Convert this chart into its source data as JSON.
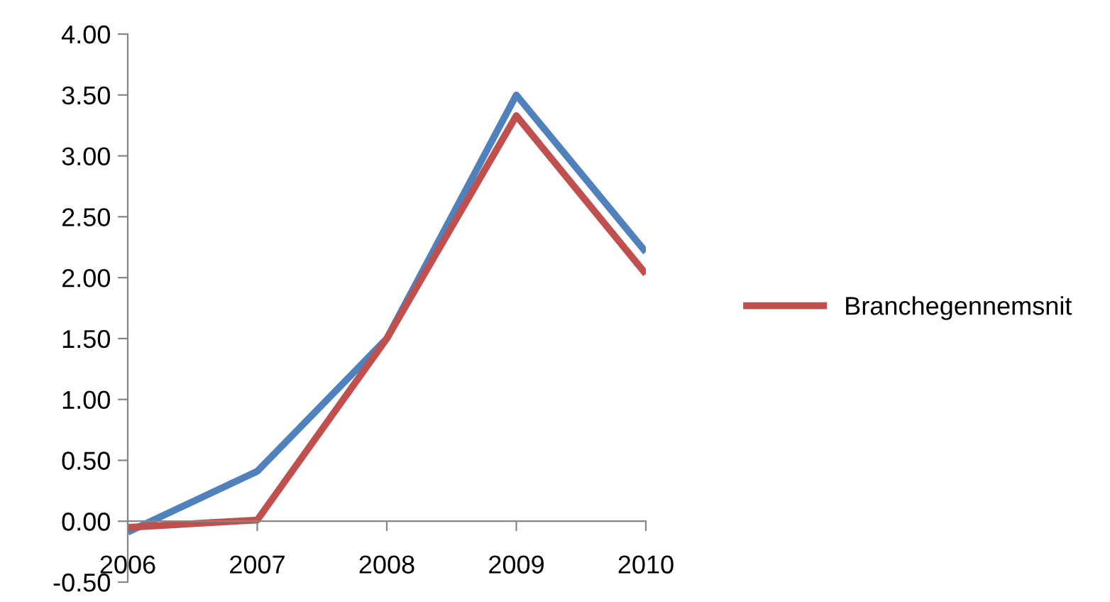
{
  "chart_data": {
    "type": "line",
    "categories": [
      "2006",
      "2007",
      "2008",
      "2009",
      "2010"
    ],
    "series": [
      {
        "color": "#4f81bd",
        "values": [
          -0.09,
          0.41,
          1.5,
          3.5,
          2.21
        ]
      },
      {
        "name": "Branchegennemsnit",
        "color": "#c0504d",
        "values": [
          -0.05,
          0.01,
          1.5,
          3.33,
          2.03
        ]
      }
    ],
    "ylim": [
      -0.5,
      4.0
    ],
    "yticks": [
      {
        "value": -0.5,
        "label": "-0.50"
      },
      {
        "value": 0,
        "label": "0.00"
      },
      {
        "value": 0.5,
        "label": "0.50"
      },
      {
        "value": 1,
        "label": "1.00"
      },
      {
        "value": 1.5,
        "label": "1.50"
      },
      {
        "value": 2,
        "label": "2.00"
      },
      {
        "value": 2.5,
        "label": "2.50"
      },
      {
        "value": 3,
        "label": "3.00"
      },
      {
        "value": 3.5,
        "label": "3.50"
      },
      {
        "value": 4,
        "label": "4.00"
      }
    ],
    "grid": false,
    "legend": "right",
    "marker": "none",
    "line_style": "solid"
  }
}
